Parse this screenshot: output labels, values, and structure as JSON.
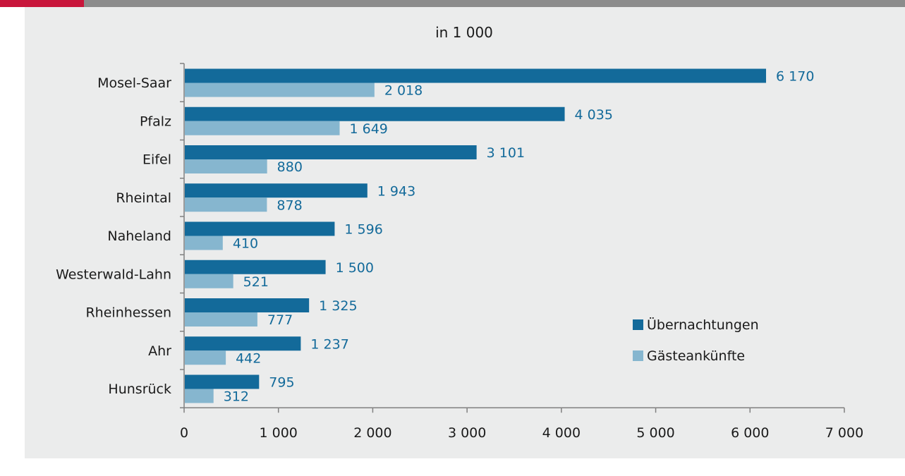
{
  "chart_data": {
    "type": "bar",
    "orientation": "horizontal",
    "title": "in 1 000",
    "categories": [
      "Mosel-Saar",
      "Pfalz",
      "Eifel",
      "Rheintal",
      "Naheland",
      "Westerwald-Lahn",
      "Rheinhessen",
      "Ahr",
      "Hunsrück"
    ],
    "series": [
      {
        "name": "Übernachtungen",
        "color": "#136a9a",
        "values": [
          6170,
          4035,
          3101,
          1943,
          1596,
          1500,
          1325,
          1237,
          795
        ],
        "labels": [
          "6 170",
          "4 035",
          "3 101",
          "1 943",
          "1 596",
          "1 500",
          "1 325",
          "1 237",
          "795"
        ]
      },
      {
        "name": "Gästeankünfte",
        "color": "#86b6cf",
        "values": [
          2018,
          1649,
          880,
          878,
          410,
          521,
          777,
          442,
          312
        ],
        "labels": [
          "2 018",
          "1 649",
          "880",
          "878",
          "410",
          "521",
          "777",
          "442",
          "312"
        ]
      }
    ],
    "xlim": [
      0,
      7000
    ],
    "xticks": [
      0,
      1000,
      2000,
      3000,
      4000,
      5000,
      6000,
      7000
    ],
    "xtick_labels": [
      "0",
      "1 000",
      "2 000",
      "3 000",
      "4 000",
      "5 000",
      "6 000",
      "7 000"
    ],
    "grid": false,
    "legend_position": "bottom-right",
    "colors": {
      "accent_bar": "#c8163b",
      "top_bar": "#8c8c8c",
      "panel_bg": "#ebecec",
      "axis": "#808080",
      "value_text": "#136a9a"
    }
  }
}
